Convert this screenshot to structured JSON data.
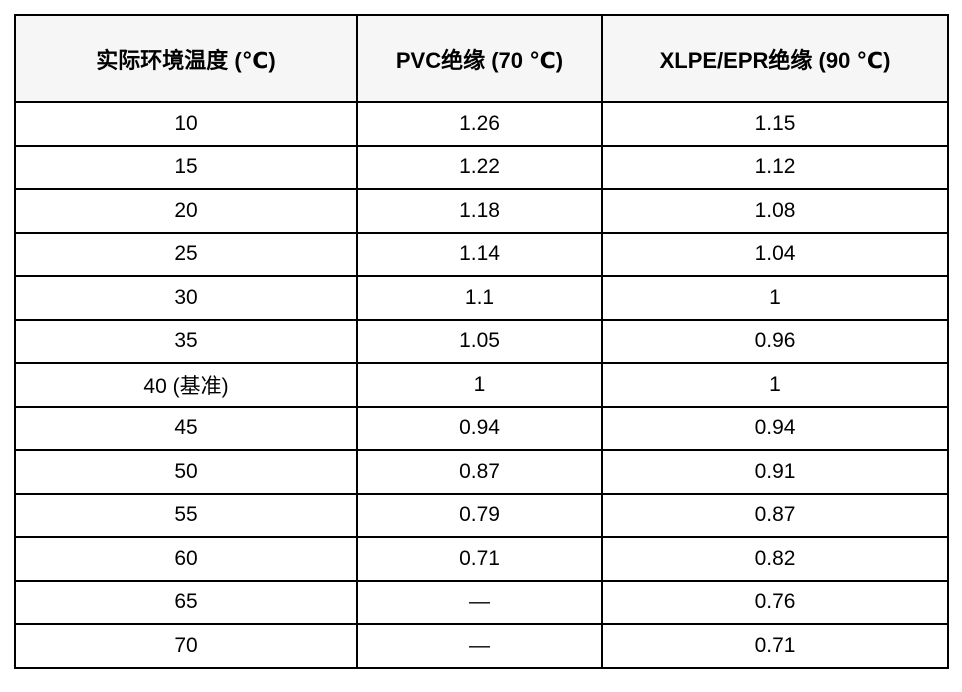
{
  "table": {
    "name": "ambient-temperature-correction-factors",
    "columns": [
      {
        "key": "temperature",
        "label": "实际环境温度 (℃)"
      },
      {
        "key": "pvc",
        "label": "PVC绝缘 (70 ℃)"
      },
      {
        "key": "xlpe_epr",
        "label": "XLPE/EPR绝缘 (90 ℃)"
      }
    ],
    "rows": [
      {
        "temperature": "10",
        "pvc": "1.26",
        "xlpe_epr": "1.15"
      },
      {
        "temperature": "15",
        "pvc": "1.22",
        "xlpe_epr": "1.12"
      },
      {
        "temperature": "20",
        "pvc": "1.18",
        "xlpe_epr": "1.08"
      },
      {
        "temperature": "25",
        "pvc": "1.14",
        "xlpe_epr": "1.04"
      },
      {
        "temperature": "30",
        "pvc": "1.1",
        "xlpe_epr": "1"
      },
      {
        "temperature": "35",
        "pvc": "1.05",
        "xlpe_epr": "0.96"
      },
      {
        "temperature": "40 (基准)",
        "pvc": "1",
        "xlpe_epr": "1"
      },
      {
        "temperature": "45",
        "pvc": "0.94",
        "xlpe_epr": "0.94"
      },
      {
        "temperature": "50",
        "pvc": "0.87",
        "xlpe_epr": "0.91"
      },
      {
        "temperature": "55",
        "pvc": "0.79",
        "xlpe_epr": "0.87"
      },
      {
        "temperature": "60",
        "pvc": "0.71",
        "xlpe_epr": "0.82"
      },
      {
        "temperature": "65",
        "pvc": "—",
        "xlpe_epr": "0.76"
      },
      {
        "temperature": "70",
        "pvc": "—",
        "xlpe_epr": "0.71"
      }
    ],
    "colors": {
      "border": "#000000",
      "header_background": "#f6f6f6",
      "row_background": "#ffffff",
      "text": "#000000"
    }
  }
}
